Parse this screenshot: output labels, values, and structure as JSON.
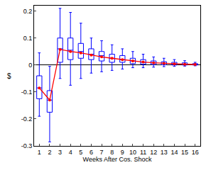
{
  "chart_data": {
    "type": "box",
    "x_label": "Weeks After Cos. Shock",
    "y_label": "$",
    "x": [
      1,
      2,
      3,
      4,
      5,
      6,
      7,
      8,
      9,
      10,
      11,
      12,
      13,
      14,
      15,
      16
    ],
    "whisker_low": [
      -0.19,
      -0.285,
      -0.05,
      -0.075,
      -0.05,
      -0.03,
      -0.025,
      -0.02,
      -0.015,
      -0.01,
      -0.01,
      -0.008,
      -0.006,
      -0.005,
      -0.004,
      -0.003
    ],
    "q1": [
      -0.125,
      -0.175,
      0.01,
      0.02,
      0.025,
      0.02,
      0.015,
      0.01,
      0.01,
      0.005,
      0.003,
      0.002,
      0.001,
      0,
      0,
      0
    ],
    "median": [
      -0.085,
      -0.13,
      0.06,
      0.055,
      0.05,
      0.04,
      0.035,
      0.025,
      0.02,
      0.015,
      0.01,
      0.008,
      0.006,
      0.004,
      0.003,
      0.002
    ],
    "q3": [
      -0.04,
      -0.095,
      0.1,
      0.1,
      0.08,
      0.06,
      0.05,
      0.04,
      0.035,
      0.025,
      0.02,
      0.015,
      0.012,
      0.01,
      0.008,
      0.005
    ],
    "whisker_high": [
      0.045,
      -0.005,
      0.21,
      0.195,
      0.155,
      0.1,
      0.09,
      0.075,
      0.06,
      0.05,
      0.04,
      0.03,
      0.025,
      0.02,
      0.016,
      0.01
    ],
    "color": "#0000ff",
    "series": [
      {
        "type": "line",
        "color": "#ff0000",
        "marker": "circle",
        "values": [
          -0.085,
          -0.13,
          0.058,
          0.05,
          0.045,
          0.037,
          0.03,
          0.025,
          0.02,
          0.015,
          0.011,
          0.008,
          0.006,
          0.004,
          0.003,
          0.002
        ]
      }
    ],
    "xlim": [
      0.5,
      16.5
    ],
    "xticks": [
      1,
      2,
      3,
      4,
      5,
      6,
      7,
      8,
      9,
      10,
      11,
      12,
      13,
      14,
      15,
      16
    ],
    "ylim": [
      -0.3,
      0.22
    ],
    "yticks": [
      -0.3,
      -0.2,
      -0.1,
      0,
      0.1,
      0.2
    ],
    "grid": false
  }
}
